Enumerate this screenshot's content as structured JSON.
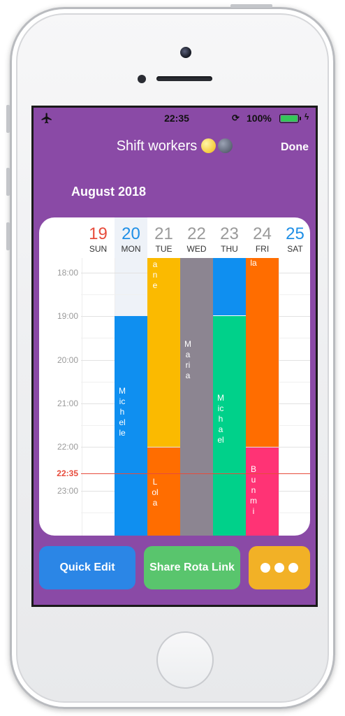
{
  "status_bar": {
    "time": "22:35",
    "battery": "100%",
    "icons": [
      "airplane-icon",
      "lock-rotation-icon",
      "battery-icon",
      "charging-bolt-icon"
    ]
  },
  "nav": {
    "title": "Shift workers",
    "done_label": "Done"
  },
  "month": "August 2018",
  "days": [
    {
      "num": "19",
      "name": "SUN",
      "color": "#e74c3c"
    },
    {
      "num": "20",
      "name": "MON",
      "color": "#1f8fe6"
    },
    {
      "num": "21",
      "name": "TUE",
      "color": "#9a9a9a"
    },
    {
      "num": "22",
      "name": "WED",
      "color": "#9a9a9a"
    },
    {
      "num": "23",
      "name": "THU",
      "color": "#9a9a9a"
    },
    {
      "num": "24",
      "name": "FRI",
      "color": "#9a9a9a"
    },
    {
      "num": "25",
      "name": "SAT",
      "color": "#1f8fe6"
    }
  ],
  "times": [
    "18:00",
    "19:00",
    "20:00",
    "21:00",
    "22:00",
    "23:00"
  ],
  "now_label": "22:35",
  "shifts": {
    "michelle": "Michelle",
    "jane": "ane",
    "lola": "Lola",
    "maria": "Maria",
    "michael": "Michael",
    "fri_top": "la",
    "bunmi": "Bunmi"
  },
  "colors": {
    "background": "#8a4aa6",
    "blue": "#0f8ff0",
    "yellow": "#fbba00",
    "orange": "#ff6d00",
    "gray": "#8c8591",
    "green": "#00d18a",
    "pink": "#ff3375"
  },
  "buttons": {
    "quick_edit": "Quick Edit",
    "share": "Share Rota Link",
    "more_icon": "more-dots-icon"
  }
}
